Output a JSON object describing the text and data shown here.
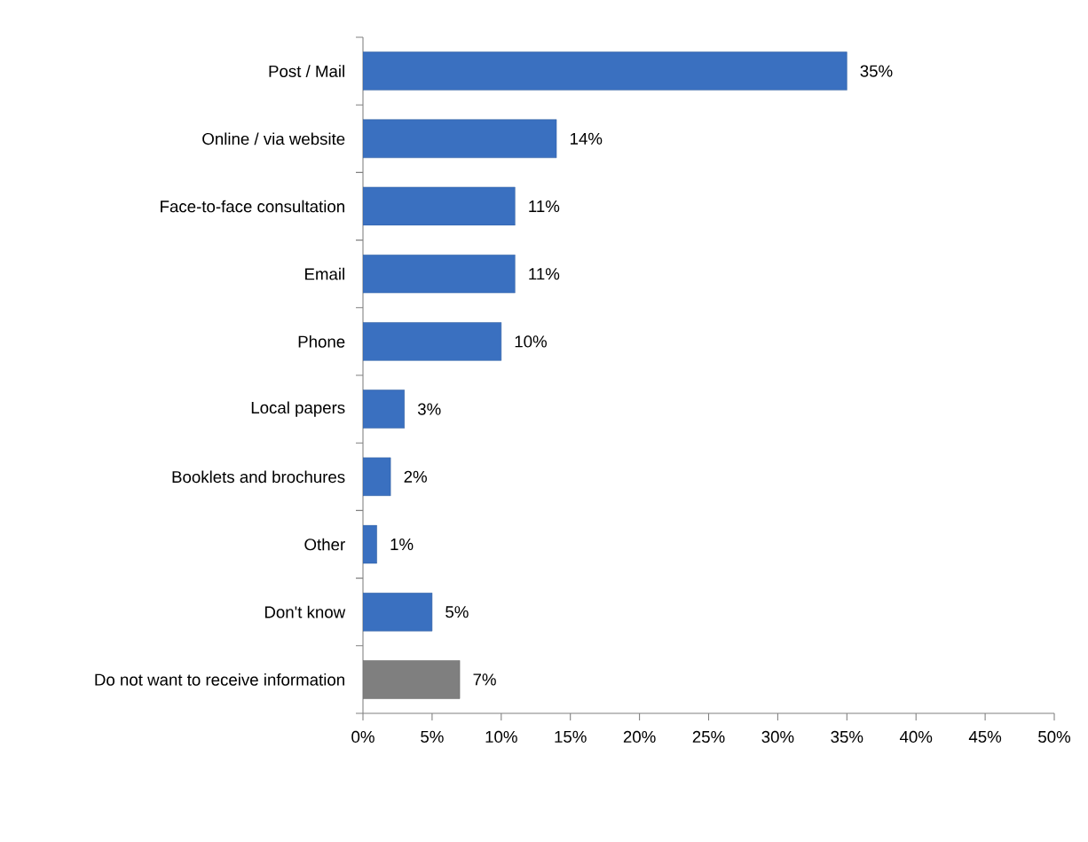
{
  "chart_data": {
    "type": "bar",
    "orientation": "horizontal",
    "categories": [
      "Post / Mail",
      "Online / via website",
      "Face-to-face consultation",
      "Email",
      "Phone",
      "Local papers",
      "Booklets and brochures",
      "Other",
      "Don't know",
      "Do not want to receive information"
    ],
    "values": [
      35,
      14,
      11,
      11,
      10,
      3,
      2,
      1,
      5,
      7
    ],
    "value_labels": [
      "35%",
      "14%",
      "11%",
      "11%",
      "10%",
      "3%",
      "2%",
      "1%",
      "5%",
      "7%"
    ],
    "colors": [
      "#3a70c0",
      "#3a70c0",
      "#3a70c0",
      "#3a70c0",
      "#3a70c0",
      "#3a70c0",
      "#3a70c0",
      "#3a70c0",
      "#3a70c0",
      "#7f7f7f"
    ],
    "xlim": [
      0,
      50
    ],
    "xticks": [
      {
        "value": 0,
        "label": "0%"
      },
      {
        "value": 5,
        "label": "5%"
      },
      {
        "value": 10,
        "label": "10%"
      },
      {
        "value": 15,
        "label": "15%"
      },
      {
        "value": 20,
        "label": "20%"
      },
      {
        "value": 25,
        "label": "25%"
      },
      {
        "value": 30,
        "label": "30%"
      },
      {
        "value": 35,
        "label": "35%"
      },
      {
        "value": 40,
        "label": "40%"
      },
      {
        "value": 45,
        "label": "45%"
      },
      {
        "value": 50,
        "label": "50%"
      }
    ],
    "grid": false
  }
}
